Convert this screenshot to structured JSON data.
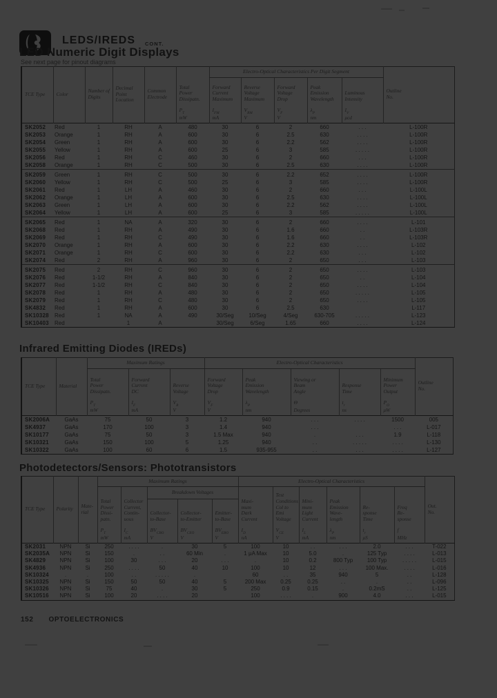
{
  "header": {
    "brand": "LEDS/IREDS",
    "brand_suffix": "CONT."
  },
  "s1": {
    "title": "LED Numeric Digit Displays",
    "subtitle": "See next page for pinout diagrams",
    "group_label": "Electro-Optical Characteristics Per Digit Segment",
    "cols": [
      {
        "label": "TCE Type"
      },
      {
        "label": "Color"
      },
      {
        "label": "Number of\nDigits"
      },
      {
        "label": "Decimal\nPoint\nLocation"
      },
      {
        "label": "Common\nElectrode"
      },
      {
        "label": "Total\nPower\nDissipatn.",
        "sym": "P",
        "sub": "T",
        "unit": "mW"
      },
      {
        "label": "Forward\nCurrent\nMaximum",
        "sym": "I",
        "sub": "FM",
        "unit": "mA"
      },
      {
        "label": "Reverse\nVoltage\nMaximum",
        "sym": "V",
        "sub": "RM",
        "unit": "V"
      },
      {
        "label": "Forward\nVoltage\nDrop",
        "sym": "V",
        "sub": "F",
        "unit": "V"
      },
      {
        "label": "Peak\nEmission\nWavelength",
        "sym": "λ",
        "sub": "P",
        "unit": "nm"
      },
      {
        "label": "Luminous\nIntensity",
        "sym": "I",
        "sub": "V",
        "unit": "μcd"
      },
      {
        "label": "Outline\nNo."
      }
    ],
    "groups": [
      [
        [
          "SK2052",
          "Red",
          "1",
          "RH",
          "A",
          "480",
          "30",
          "6",
          "2",
          "660",
          ". . .",
          "L-100R"
        ],
        [
          "SK2053",
          "Orange",
          "1",
          "RH",
          "A",
          "600",
          "30",
          "6",
          "2.5",
          "630",
          ". . . .",
          "L-100R"
        ],
        [
          "SK2054",
          "Green",
          "1",
          "RH",
          "A",
          "600",
          "30",
          "6",
          "2.2",
          "562",
          ". . . .",
          "L-100R"
        ],
        [
          "SK2055",
          "Yellow",
          "1",
          "RH",
          "A",
          "600",
          "25",
          "6",
          "3",
          "585",
          ". . . . .",
          "L-100R"
        ],
        [
          "SK2056",
          "Red",
          "1",
          "RH",
          "C",
          "460",
          "30",
          "6",
          "2",
          "660",
          ". . .",
          "L-100R"
        ],
        [
          "SK2058",
          "Orange",
          "1",
          "RH",
          "C",
          "500",
          "30",
          "6",
          "2.5",
          "630",
          ". . . .",
          "L-100R"
        ]
      ],
      [
        [
          "SK2059",
          "Green",
          "1",
          "RH",
          "C",
          "500",
          "30",
          "6",
          "2.2",
          "652",
          ". . . .",
          "L-100R"
        ],
        [
          "SK2060",
          "Yellow",
          "1",
          "RH",
          "C",
          "500",
          "25",
          "6",
          "3",
          "585",
          ". . . .",
          "L-100R"
        ],
        [
          "SK2061",
          "Red",
          "1",
          "LH",
          "A",
          "460",
          "30",
          "6",
          "2",
          "660",
          ". . .",
          "L-100L"
        ],
        [
          "SK2062",
          "Orange",
          "1",
          "LH",
          "A",
          "600",
          "30",
          "6",
          "2.5",
          "630",
          ". . . .",
          "L-100L"
        ],
        [
          "SK2063",
          "Green",
          "1",
          "LH",
          "A",
          "600",
          "30",
          "6",
          "2.2",
          "562",
          ". . . .",
          "L-100L"
        ],
        [
          "SK2064",
          "Yellow",
          "1",
          "LH",
          "A",
          "600",
          "25",
          "6",
          "3",
          "585",
          ". . . . .",
          "L-100L"
        ]
      ],
      [
        [
          "SK2065",
          "Red",
          "1",
          "NA",
          "A",
          "320",
          "30",
          "6",
          "2",
          "660",
          ". . . .",
          "L-101"
        ],
        [
          "SK2068",
          "Red",
          "1",
          "RH",
          "A",
          "490",
          "30",
          "6",
          "1.6",
          "660",
          ". .",
          "L-103R"
        ],
        [
          "SK2069",
          "Red",
          "1",
          "RH",
          "C",
          "490",
          "30",
          "6",
          "1.6",
          "660",
          ". .",
          "L-103R"
        ],
        [
          "SK2070",
          "Orange",
          "1",
          "RH",
          "A",
          "600",
          "30",
          "6",
          "2.2",
          "630",
          ". . . .",
          "L-102"
        ],
        [
          "SK2071",
          "Orange",
          "1",
          "RH",
          "C",
          "600",
          "30",
          "6",
          "2.2",
          "630",
          ". . .",
          "L-102"
        ],
        [
          "SK2074",
          "Red",
          "2",
          "RH",
          "A",
          "960",
          "30",
          "6",
          "2",
          "650",
          ". . .",
          "L-103"
        ]
      ],
      [
        [
          "SK2075",
          "Red",
          "2",
          "RH",
          "C",
          "960",
          "30",
          "6",
          "2",
          "650",
          ". . . .",
          "L-103"
        ],
        [
          "SK2076",
          "Red",
          "1-1/2",
          "RH",
          "A",
          "840",
          "30",
          "6",
          "2",
          "650",
          ". .",
          "L-104"
        ],
        [
          "SK2077",
          "Red",
          "1-1/2",
          "RH",
          "C",
          "840",
          "30",
          "6",
          "2",
          "650",
          ". . . .",
          "L-104"
        ],
        [
          "SK2078",
          "Red",
          "1",
          "RH",
          "A",
          "480",
          "30",
          "6",
          "2",
          "650",
          ". . . . .",
          "L-105"
        ],
        [
          "SK2079",
          "Red",
          "1",
          "RH",
          "C",
          "480",
          "30",
          "6",
          "2",
          "650",
          ". . . .",
          "L-105"
        ],
        [
          "SK4832",
          "Red",
          "1",
          "RH",
          "A",
          "600",
          "30",
          "6",
          "2.5",
          "630",
          "",
          "L-117"
        ],
        [
          "SK10328",
          "Red",
          "1",
          "NA",
          "A",
          "490",
          "30/Seg",
          "10/Seg",
          "4/Seg",
          "630-705",
          ". . . . .",
          "L-123"
        ],
        [
          "SK10403",
          "Red",
          "",
          "1",
          "A",
          "",
          "30/Seg",
          "6/Seg",
          "1.65",
          "660",
          ". . . .",
          "L-124"
        ]
      ]
    ]
  },
  "s2": {
    "title": "Infrared Emitting Diodes (IREDs)",
    "group_max": "Maximum Ratings",
    "group_eo": "Electro-Optical Characteristics",
    "cols": [
      {
        "label": "TCE Type"
      },
      {
        "label": "Material"
      },
      {
        "label": "Total\nPower\nDissipatn.",
        "sym": "P",
        "sub": "T",
        "unit": "mW"
      },
      {
        "label": "Forward\nCurrent\nDC",
        "sym": "I",
        "sub": "F",
        "unit": "mA"
      },
      {
        "label": "Reverse\nVoltage",
        "sym": "V",
        "sub": "R",
        "unit": "V"
      },
      {
        "label": "Forward\nVoltage\nDrop",
        "sym": "V",
        "sub": "F",
        "unit": "V"
      },
      {
        "label": "Peak\nEmission\nWavelength",
        "sym": "λ",
        "sub": "P",
        "unit": "nm"
      },
      {
        "label": "Viewing or\nBeam\nAngle",
        "sym": "Θ",
        "sub": "",
        "unit": "Degrees"
      },
      {
        "label": "Response\nTime",
        "sym": "t",
        "sub": "r",
        "unit": "ns"
      },
      {
        "label": "Minimum\nPower\nOutput",
        "sym": "P",
        "sub": "O",
        "unit": "μW"
      },
      {
        "label": "Outline\nNo."
      }
    ],
    "groups": [
      [
        [
          "SK2006A",
          "GaAs",
          "75",
          "50",
          "3",
          "1.2",
          "940",
          ". . .",
          ". . . .",
          "1500",
          "005"
        ],
        [
          "SK4937",
          "GaAs",
          "170",
          "100",
          "3",
          "1.4",
          "940",
          ". . .",
          "",
          ". . .",
          "L-017"
        ],
        [
          "SK10177",
          "GaAs",
          "75",
          "50",
          "3",
          "1.5 Max",
          "940",
          ".",
          ". . .",
          "1.9",
          "L-118"
        ],
        [
          "SK10321",
          "GaAs",
          "150",
          "100",
          "5",
          "1.25",
          "940",
          ". .",
          ". . . . .",
          ". . . .",
          "L-130"
        ],
        [
          "SK10322",
          "GaAs",
          "100",
          "60",
          "6",
          "1.5",
          "935-955",
          ". .",
          ". . .",
          ". . . .",
          "L-127"
        ]
      ]
    ]
  },
  "s3": {
    "title": "Photodetectors/Sensors: Phototransistors",
    "group_max": "Maximum Ratings",
    "group_eo": "Electro-Optical Characteristics",
    "group_bv": "Breakdown Voltages",
    "cols": [
      {
        "label": "TCE Type"
      },
      {
        "label": "Polarity"
      },
      {
        "label": "Mate-\nrial"
      },
      {
        "label": "Total\nPower\nDissi-\npatn.",
        "sym": "P",
        "sub": "T",
        "unit": "mW"
      },
      {
        "label": "Collector\nCurrent,\nContin-\nuous",
        "sym": "I",
        "sub": "C",
        "unit": "mA"
      },
      {
        "label": "Collector-\nto-Base",
        "sym": "BV",
        "sub": "CBO",
        "unit": "V"
      },
      {
        "label": "Collector-\nto-Emitter",
        "sym": "BV",
        "sub": "CEO",
        "unit": "V"
      },
      {
        "label": "Emitter-\nto-Base",
        "sym": "BV",
        "sub": "EBO",
        "unit": "V"
      },
      {
        "label": "Maxi-\nmum\nDark\nCurrent",
        "sym": "I",
        "sub": "D",
        "unit": "nA"
      },
      {
        "label": "Test\nConditions\nCol to Emi\nVoltage",
        "sym": "V",
        "sub": "CE",
        "unit": "V"
      },
      {
        "label": "Mini-\nmum\nLight\nCurrent",
        "sym": "I",
        "sub": "L",
        "unit": "mA"
      },
      {
        "label": "Peak\nEmission\nWave-\nlength",
        "sym": "λ",
        "sub": "P",
        "unit": "nm"
      },
      {
        "label": "Re-\nsponse\nTime",
        "sym": "t",
        "sub": "r",
        "unit": "μS"
      },
      {
        "label": "Freq\nRe-\nsponse",
        "sym": "f",
        "sub": "",
        "unit": "MHz"
      },
      {
        "label": "Out.\nNo."
      }
    ],
    "groups": [
      [
        [
          "SK2031",
          "NPN",
          "Si",
          "250",
          ". . . .",
          ".",
          "30",
          "5",
          "100",
          "10",
          ". .",
          ". . .",
          "2.0",
          ". . .",
          "T-022"
        ],
        [
          "SK2035A",
          "NPN",
          "Si",
          "150",
          ".",
          ". .",
          "60 Min",
          ".",
          "1 μA Max",
          "10",
          "5.0",
          ".",
          "125 Typ",
          ". . . .",
          "L-013"
        ],
        [
          "SK4829",
          "NPN",
          "Si",
          "100",
          "30",
          ". . .",
          "20",
          ". . .",
          ".",
          "10",
          "0.2",
          "800 Typ",
          "100 Typ",
          ". . . . .",
          "L-015"
        ],
        [
          "SK4936",
          "NPN",
          "Si",
          "250",
          ". . . .",
          "50",
          "40",
          "10",
          "100",
          "10",
          "12",
          ". . .",
          "100 Max.",
          ". . . .",
          "L-016"
        ],
        [
          "SK10324",
          ".",
          ".",
          "100",
          ". .",
          ". . . . .",
          ".",
          "",
          "60",
          ". .",
          "35",
          "940",
          "5",
          ". .",
          "L-128"
        ],
        [
          "SK10325",
          "NPN",
          "Si",
          "150",
          "50",
          "50",
          "40",
          "5",
          "200 Max",
          "0.25",
          "0.25",
          ". .",
          ".",
          ". .",
          "L-096"
        ],
        [
          "SK10326",
          "NPN",
          "Si",
          "75",
          "40",
          ".",
          "30",
          "5",
          "250",
          "0.9",
          "0.15",
          ".",
          "0.2mS",
          ". .",
          "L-125"
        ],
        [
          "SK10516",
          "NPN",
          "Si",
          "100",
          "20",
          ". . . .",
          "20",
          "",
          "100",
          ". . . .",
          ".",
          "900",
          "4.0",
          ". . .",
          "L-015"
        ]
      ]
    ]
  },
  "footer": {
    "page_number": "152",
    "label": "OPTOELECTRONICS"
  }
}
